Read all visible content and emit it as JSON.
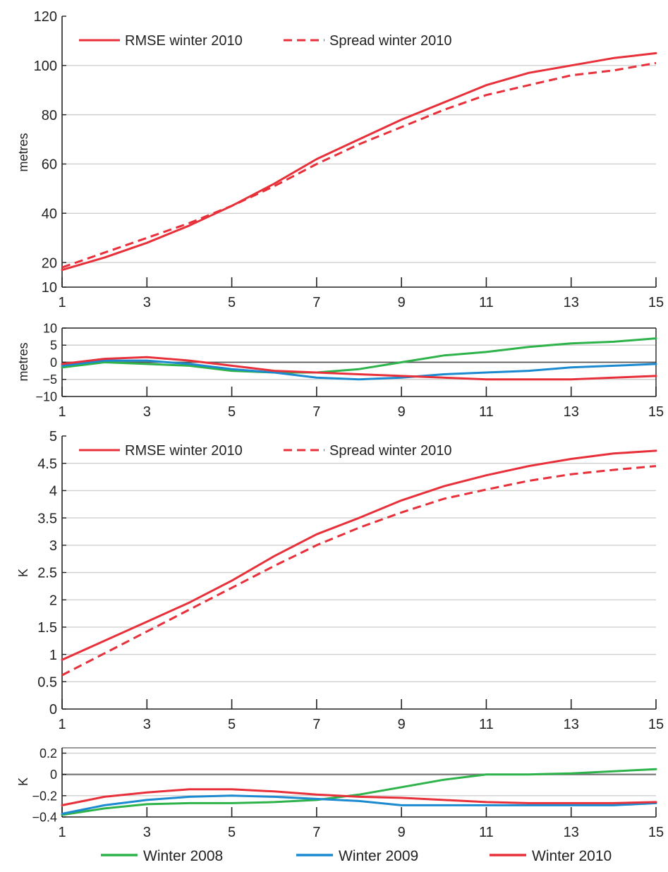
{
  "chart_data": [
    {
      "type": "line",
      "ylabel": "metres",
      "xlim": [
        1,
        15
      ],
      "ylim": [
        10,
        120
      ],
      "x_ticks": [
        "1",
        "3",
        "5",
        "7",
        "9",
        "11",
        "13",
        "15"
      ],
      "y_ticks": [
        "10",
        "20",
        "40",
        "60",
        "80",
        "100",
        "120"
      ],
      "grid": true,
      "legend_position": "top-left",
      "series": [
        {
          "name": "RMSE winter 2010",
          "style": "solid",
          "color": "#e8303a",
          "x": [
            1,
            2,
            3,
            4,
            5,
            6,
            7,
            8,
            9,
            10,
            11,
            12,
            13,
            14,
            15
          ],
          "y": [
            17,
            22,
            28,
            35,
            43,
            52,
            62,
            70,
            78,
            85,
            92,
            97,
            100,
            103,
            105
          ]
        },
        {
          "name": "Spread winter 2010",
          "style": "dashed",
          "color": "#e8303a",
          "x": [
            1,
            2,
            3,
            4,
            5,
            6,
            7,
            8,
            9,
            10,
            11,
            12,
            13,
            14,
            15
          ],
          "y": [
            18,
            24,
            30,
            36,
            43,
            51,
            60,
            68,
            75,
            82,
            88,
            92,
            96,
            98,
            101
          ]
        }
      ]
    },
    {
      "type": "line",
      "ylabel": "metres",
      "xlim": [
        1,
        15
      ],
      "ylim": [
        -10,
        10
      ],
      "x_ticks": [
        "1",
        "3",
        "5",
        "7",
        "9",
        "11",
        "13",
        "15"
      ],
      "y_ticks": [
        "−10",
        "−5",
        "0",
        "5",
        "10"
      ],
      "grid": true,
      "series": [
        {
          "name": "Winter 2008",
          "color": "#2db34a",
          "x": [
            1,
            2,
            3,
            4,
            5,
            6,
            7,
            8,
            9,
            10,
            11,
            12,
            13,
            14,
            15
          ],
          "y": [
            -1.5,
            0,
            -0.5,
            -1,
            -2.5,
            -3,
            -3,
            -2,
            0,
            2,
            3,
            4.5,
            5.5,
            6,
            7
          ]
        },
        {
          "name": "Winter 2009",
          "color": "#1b8ad0",
          "x": [
            1,
            2,
            3,
            4,
            5,
            6,
            7,
            8,
            9,
            10,
            11,
            12,
            13,
            14,
            15
          ],
          "y": [
            -1,
            0.5,
            0.5,
            -0.5,
            -2,
            -3,
            -4.5,
            -5,
            -4.5,
            -3.5,
            -3,
            -2.5,
            -1.5,
            -1,
            -0.5
          ]
        },
        {
          "name": "Winter 2010",
          "color": "#e8303a",
          "x": [
            1,
            2,
            3,
            4,
            5,
            6,
            7,
            8,
            9,
            10,
            11,
            12,
            13,
            14,
            15
          ],
          "y": [
            -0.5,
            1,
            1.5,
            0.5,
            -1,
            -2.5,
            -3,
            -3.5,
            -4,
            -4.5,
            -5,
            -5,
            -5,
            -4.5,
            -4
          ]
        }
      ]
    },
    {
      "type": "line",
      "ylabel": "K",
      "xlim": [
        1,
        15
      ],
      "ylim": [
        0,
        5
      ],
      "x_ticks": [
        "1",
        "3",
        "5",
        "7",
        "9",
        "11",
        "13",
        "15"
      ],
      "y_ticks": [
        "0",
        "0.5",
        "1",
        "1.5",
        "2",
        "2.5",
        "3",
        "3.5",
        "4",
        "4.5",
        "5"
      ],
      "grid": true,
      "legend_position": "top-left",
      "series": [
        {
          "name": "RMSE winter 2010",
          "style": "solid",
          "color": "#e8303a",
          "x": [
            1,
            2,
            3,
            4,
            5,
            6,
            7,
            8,
            9,
            10,
            11,
            12,
            13,
            14,
            15
          ],
          "y": [
            0.9,
            1.25,
            1.6,
            1.95,
            2.35,
            2.8,
            3.2,
            3.5,
            3.82,
            4.08,
            4.28,
            4.45,
            4.58,
            4.68,
            4.73
          ]
        },
        {
          "name": "Spread winter 2010",
          "style": "dashed",
          "color": "#e8303a",
          "x": [
            1,
            2,
            3,
            4,
            5,
            6,
            7,
            8,
            9,
            10,
            11,
            12,
            13,
            14,
            15
          ],
          "y": [
            0.62,
            1.02,
            1.42,
            1.82,
            2.22,
            2.62,
            3.0,
            3.32,
            3.6,
            3.85,
            4.02,
            4.18,
            4.3,
            4.38,
            4.45
          ]
        }
      ]
    },
    {
      "type": "line",
      "ylabel": "K",
      "xlim": [
        1,
        15
      ],
      "ylim": [
        -0.4,
        0.25
      ],
      "x_ticks": [
        "1",
        "3",
        "5",
        "7",
        "9",
        "11",
        "13",
        "15"
      ],
      "y_ticks": [
        "−0.4",
        "−0.2",
        "0",
        "0.2"
      ],
      "grid": true,
      "legend_position": "bottom",
      "series": [
        {
          "name": "Winter 2008",
          "color": "#2db34a",
          "x": [
            1,
            2,
            3,
            4,
            5,
            6,
            7,
            8,
            9,
            10,
            11,
            12,
            13,
            14,
            15
          ],
          "y": [
            -0.38,
            -0.32,
            -0.28,
            -0.27,
            -0.27,
            -0.26,
            -0.24,
            -0.19,
            -0.12,
            -0.05,
            0.0,
            0.0,
            0.01,
            0.03,
            0.05
          ]
        },
        {
          "name": "Winter 2009",
          "color": "#1b8ad0",
          "x": [
            1,
            2,
            3,
            4,
            5,
            6,
            7,
            8,
            9,
            10,
            11,
            12,
            13,
            14,
            15
          ],
          "y": [
            -0.37,
            -0.29,
            -0.24,
            -0.21,
            -0.2,
            -0.21,
            -0.23,
            -0.25,
            -0.29,
            -0.29,
            -0.29,
            -0.29,
            -0.29,
            -0.29,
            -0.27
          ]
        },
        {
          "name": "Winter 2010",
          "color": "#e8303a",
          "x": [
            1,
            2,
            3,
            4,
            5,
            6,
            7,
            8,
            9,
            10,
            11,
            12,
            13,
            14,
            15
          ],
          "y": [
            -0.29,
            -0.21,
            -0.17,
            -0.14,
            -0.14,
            -0.16,
            -0.19,
            -0.21,
            -0.22,
            -0.24,
            -0.26,
            -0.27,
            -0.27,
            -0.27,
            -0.26
          ]
        }
      ]
    }
  ],
  "bottom_legend": [
    {
      "name": "Winter 2008",
      "color": "#2db34a"
    },
    {
      "name": "Winter 2009",
      "color": "#1b8ad0"
    },
    {
      "name": "Winter 2010",
      "color": "#e8303a"
    }
  ]
}
